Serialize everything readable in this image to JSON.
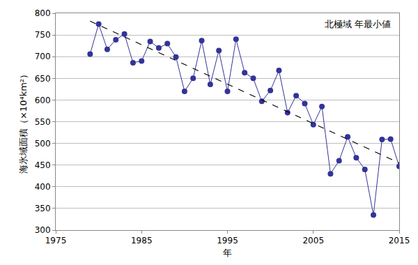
{
  "chart_data": {
    "type": "line",
    "x_label": "年",
    "y_label": "海氷域面積（×10⁴km²）",
    "annotations": [
      "北極域 年最小値"
    ],
    "x": [
      1979,
      1980,
      1981,
      1982,
      1983,
      1984,
      1985,
      1986,
      1987,
      1988,
      1989,
      1990,
      1991,
      1992,
      1993,
      1994,
      1995,
      1996,
      1997,
      1998,
      1999,
      2000,
      2001,
      2002,
      2003,
      2004,
      2005,
      2006,
      2007,
      2008,
      2009,
      2010,
      2011,
      2012,
      2013,
      2014,
      2015
    ],
    "series": [
      {
        "color": "#333399",
        "marker": "circle",
        "line_style": "solid",
        "values": [
          706,
          775,
          717,
          739,
          752,
          686,
          690,
          735,
          720,
          730,
          699,
          620,
          650,
          737,
          636,
          714,
          620,
          740,
          663,
          650,
          597,
          622,
          668,
          571,
          610,
          592,
          543,
          585,
          430,
          460,
          515,
          467,
          440,
          335,
          509,
          510,
          447
        ]
      },
      {
        "color": "#000000",
        "marker": "none",
        "line_style": "dash",
        "x": [
          1979,
          2015
        ],
        "values": [
          782,
          455
        ]
      }
    ],
    "xlim": [
      1975,
      2015
    ],
    "xticks": [
      1975,
      1985,
      1995,
      2005,
      2015
    ],
    "ylim": [
      300,
      800
    ],
    "yticks": [
      300,
      350,
      400,
      450,
      500,
      550,
      600,
      650,
      700,
      750,
      800
    ],
    "grid": true
  }
}
